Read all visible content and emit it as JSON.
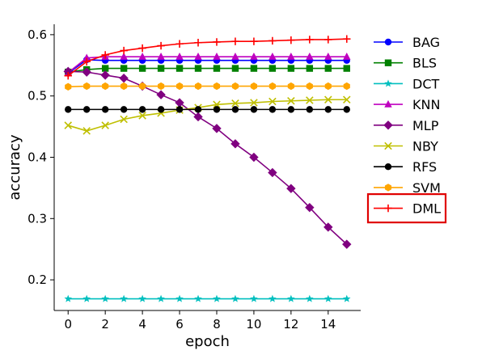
{
  "chart_data": {
    "type": "line",
    "title": "",
    "xlabel": "epoch",
    "ylabel": "accuracy",
    "xlim": [
      -0.75,
      15.75
    ],
    "ylim": [
      0.15,
      0.617
    ],
    "xticks": [
      0,
      2,
      4,
      6,
      8,
      10,
      12,
      14
    ],
    "yticks": [
      0.2,
      0.3,
      0.4,
      0.5,
      0.6
    ],
    "grid": false,
    "legend_position": "right",
    "highlighted_legend_entry": "DML",
    "highlight_color": "#e00000",
    "x": [
      0,
      1,
      2,
      3,
      4,
      5,
      6,
      7,
      8,
      9,
      10,
      11,
      12,
      13,
      14,
      15
    ],
    "series": [
      {
        "name": "BAG",
        "color": "#0000ff",
        "marker": "circle",
        "values": [
          0.537,
          0.559,
          0.558,
          0.558,
          0.558,
          0.558,
          0.558,
          0.558,
          0.558,
          0.558,
          0.558,
          0.558,
          0.558,
          0.558,
          0.558,
          0.558
        ]
      },
      {
        "name": "BLS",
        "color": "#008000",
        "marker": "square",
        "values": [
          0.539,
          0.543,
          0.545,
          0.545,
          0.545,
          0.545,
          0.545,
          0.545,
          0.545,
          0.545,
          0.545,
          0.545,
          0.545,
          0.545,
          0.545,
          0.545
        ]
      },
      {
        "name": "DCT",
        "color": "#00bfbf",
        "marker": "star",
        "values": [
          0.169,
          0.169,
          0.169,
          0.169,
          0.169,
          0.169,
          0.169,
          0.169,
          0.169,
          0.169,
          0.169,
          0.169,
          0.169,
          0.169,
          0.169,
          0.169
        ]
      },
      {
        "name": "KNN",
        "color": "#bf00bf",
        "marker": "triangle",
        "values": [
          0.538,
          0.562,
          0.564,
          0.564,
          0.564,
          0.564,
          0.564,
          0.564,
          0.564,
          0.564,
          0.564,
          0.564,
          0.564,
          0.564,
          0.564,
          0.564
        ]
      },
      {
        "name": "MLP",
        "color": "#800080",
        "marker": "diamond",
        "values": [
          0.54,
          0.539,
          0.534,
          0.529,
          0.516,
          0.502,
          0.489,
          0.466,
          0.447,
          0.422,
          0.4,
          0.375,
          0.349,
          0.318,
          0.286,
          0.258
        ]
      },
      {
        "name": "NBY",
        "color": "#bfbf00",
        "marker": "x",
        "values": [
          0.452,
          0.443,
          0.452,
          0.462,
          0.468,
          0.472,
          0.477,
          0.481,
          0.486,
          0.488,
          0.489,
          0.491,
          0.492,
          0.493,
          0.494,
          0.494
        ]
      },
      {
        "name": "RFS",
        "color": "#000000",
        "marker": "circle",
        "values": [
          0.478,
          0.478,
          0.478,
          0.478,
          0.478,
          0.478,
          0.478,
          0.478,
          0.478,
          0.478,
          0.478,
          0.478,
          0.478,
          0.478,
          0.478,
          0.478
        ]
      },
      {
        "name": "SVM",
        "color": "#ffa500",
        "marker": "hexagon",
        "values": [
          0.515,
          0.516,
          0.516,
          0.516,
          0.516,
          0.516,
          0.516,
          0.516,
          0.516,
          0.516,
          0.516,
          0.516,
          0.516,
          0.516,
          0.516,
          0.516
        ]
      },
      {
        "name": "DML",
        "color": "#ff0000",
        "marker": "plus",
        "values": [
          0.533,
          0.556,
          0.567,
          0.574,
          0.578,
          0.582,
          0.585,
          0.587,
          0.588,
          0.589,
          0.589,
          0.59,
          0.591,
          0.592,
          0.592,
          0.593
        ]
      }
    ]
  }
}
